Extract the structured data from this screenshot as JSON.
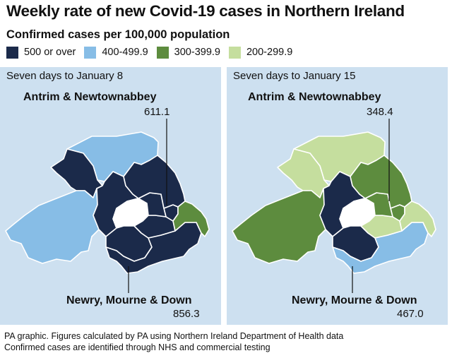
{
  "title": "Weekly rate of new Covid-19 cases in Northern Ireland",
  "subtitle": "Confirmed cases per 100,000 population",
  "colors": {
    "band_500_plus": "#1b2a4a",
    "band_400_499": "#87bde6",
    "band_300_399": "#5d8c3e",
    "band_200_299": "#c5de9e",
    "panel_bg": "#cde0f0",
    "border": "#ffffff"
  },
  "legend": [
    {
      "label": "500 or over",
      "color": "#1b2a4a"
    },
    {
      "label": "400-499.9",
      "color": "#87bde6"
    },
    {
      "label": "300-399.9",
      "color": "#5d8c3e"
    },
    {
      "label": "200-299.9",
      "color": "#c5de9e"
    }
  ],
  "maps": [
    {
      "period": "Seven days to January 8",
      "regions": {
        "causeway_coast_glens": "#87bde6",
        "fermanagh_omagh": "#87bde6",
        "derry_strabane": "#1b2a4a",
        "mid_ulster": "#1b2a4a",
        "armagh_banbridge_craigavon": "#1b2a4a",
        "newry_mourne_down": "#1b2a4a",
        "lisburn_castlereagh": "#1b2a4a",
        "belfast": "#1b2a4a",
        "mid_east_antrim": "#1b2a4a",
        "antrim_newtownabbey": "#1b2a4a",
        "ards_north_down": "#5d8c3e"
      },
      "callouts": [
        {
          "name": "Antrim & Newtownabbey",
          "value": "611.1"
        },
        {
          "name": "Newry, Mourne & Down",
          "value": "856.3"
        }
      ]
    },
    {
      "period": "Seven days to January 15",
      "regions": {
        "causeway_coast_glens": "#c5de9e",
        "fermanagh_omagh": "#5d8c3e",
        "derry_strabane": "#c5de9e",
        "mid_ulster": "#1b2a4a",
        "armagh_banbridge_craigavon": "#1b2a4a",
        "newry_mourne_down": "#87bde6",
        "lisburn_castlereagh": "#c5de9e",
        "belfast": "#5d8c3e",
        "mid_east_antrim": "#5d8c3e",
        "antrim_newtownabbey": "#5d8c3e",
        "ards_north_down": "#c5de9e"
      },
      "callouts": [
        {
          "name": "Antrim & Newtownabbey",
          "value": "348.4"
        },
        {
          "name": "Newry, Mourne & Down",
          "value": "467.0"
        }
      ]
    }
  ],
  "footer": {
    "line1": "PA graphic. Figures calculated by PA using Northern Ireland Department of Health data",
    "line2": "Confirmed cases are identified through NHS and commercial testing"
  }
}
